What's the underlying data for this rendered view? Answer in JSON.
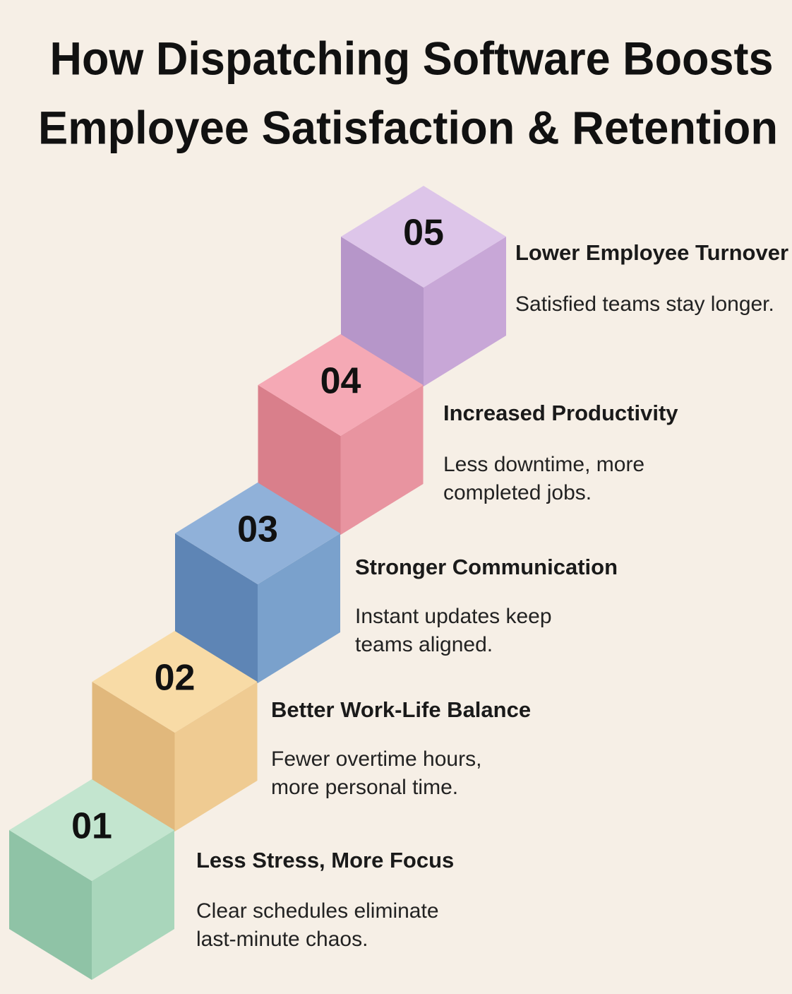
{
  "title": [
    "How Dispatching Software Boosts",
    "Employee Satisfaction & Retention"
  ],
  "steps": [
    {
      "number": "01",
      "heading": "Less Stress, More Focus",
      "description": [
        "Clear schedules eliminate",
        "last-minute chaos."
      ]
    },
    {
      "number": "02",
      "heading": "Better Work-Life Balance",
      "description": [
        "Fewer overtime hours,",
        "more personal time."
      ]
    },
    {
      "number": "03",
      "heading": "Stronger Communication",
      "description": [
        "Instant updates keep",
        "teams aligned."
      ]
    },
    {
      "number": "04",
      "heading": "Increased Productivity",
      "description": [
        "Less downtime, more",
        "completed jobs."
      ]
    },
    {
      "number": "05",
      "heading": "Lower Employee Turnover",
      "description": [
        "Satisfied teams stay longer."
      ]
    }
  ]
}
